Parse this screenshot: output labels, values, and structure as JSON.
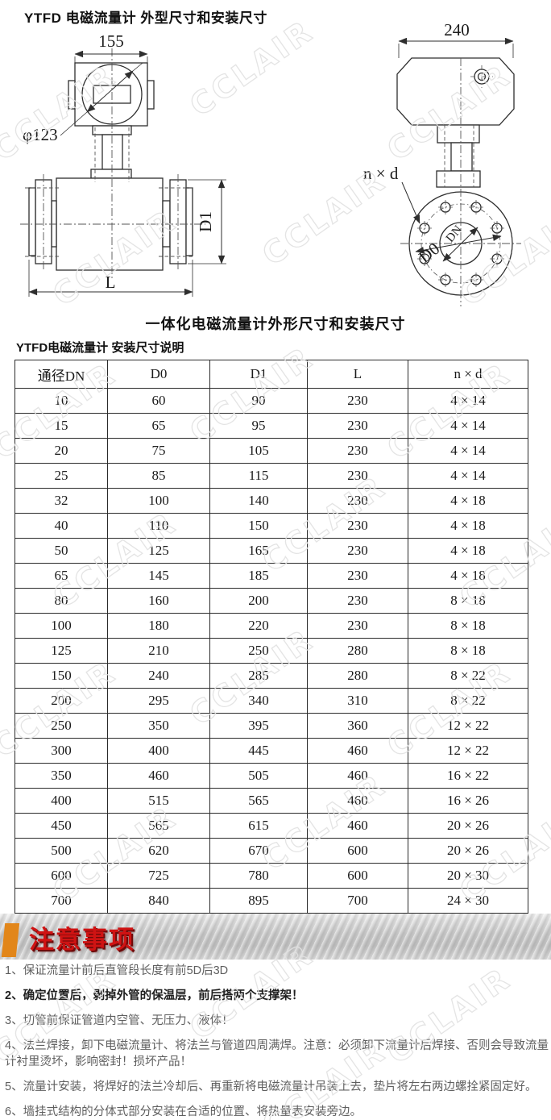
{
  "page": {
    "title": "YTFD 电磁流量计 外型尺寸和安装尺寸",
    "drawings_caption": "一体化电磁流量计外形尺寸和安装尺寸",
    "table_title": "YTFD电磁流量计 安装尺寸说明",
    "watermark_text": "CCLAIR"
  },
  "drawings": {
    "side_view": {
      "top_width": "155",
      "head_diameter": "φ123",
      "flange_diameter": "D1",
      "body_length": "L"
    },
    "front_view": {
      "top_width": "240",
      "bolt_spec": "n × d",
      "bolt_circle": "D0",
      "bore": "DN"
    }
  },
  "table": {
    "headers": [
      "通径DN",
      "D0",
      "D1",
      "L",
      "n × d"
    ],
    "rows": [
      [
        "10",
        "60",
        "90",
        "230",
        "4 × 14"
      ],
      [
        "15",
        "65",
        "95",
        "230",
        "4 × 14"
      ],
      [
        "20",
        "75",
        "105",
        "230",
        "4 × 14"
      ],
      [
        "25",
        "85",
        "115",
        "230",
        "4 × 14"
      ],
      [
        "32",
        "100",
        "140",
        "230",
        "4 × 18"
      ],
      [
        "40",
        "110",
        "150",
        "230",
        "4 × 18"
      ],
      [
        "50",
        "125",
        "165",
        "230",
        "4 × 18"
      ],
      [
        "65",
        "145",
        "185",
        "230",
        "4 × 18"
      ],
      [
        "80",
        "160",
        "200",
        "230",
        "8 × 18"
      ],
      [
        "100",
        "180",
        "220",
        "230",
        "8 × 18"
      ],
      [
        "125",
        "210",
        "250",
        "280",
        "8 × 18"
      ],
      [
        "150",
        "240",
        "285",
        "280",
        "8 × 22"
      ],
      [
        "200",
        "295",
        "340",
        "310",
        "8 × 22"
      ],
      [
        "250",
        "350",
        "395",
        "360",
        "12 × 22"
      ],
      [
        "300",
        "400",
        "445",
        "460",
        "12 × 22"
      ],
      [
        "350",
        "460",
        "505",
        "460",
        "16 × 22"
      ],
      [
        "400",
        "515",
        "565",
        "460",
        "16 × 26"
      ],
      [
        "450",
        "565",
        "615",
        "460",
        "20 × 26"
      ],
      [
        "500",
        "620",
        "670",
        "600",
        "20 × 26"
      ],
      [
        "600",
        "725",
        "780",
        "600",
        "20 × 30"
      ],
      [
        "700",
        "840",
        "895",
        "700",
        "24 × 30"
      ]
    ]
  },
  "notes": {
    "header": "注意事项",
    "items": [
      {
        "text": "1、保证流量计前后直管段长度有前5D后3D",
        "emphasis": false
      },
      {
        "text": "2、确定位置后，剥掉外管的保温层，前后搭两个支撑架！",
        "emphasis": true
      },
      {
        "text": "3、切管前保证管道内空管、无压力、液体！",
        "emphasis": false
      },
      {
        "text": "4、法兰焊接，卸下电磁流量计、将法兰与管道四周满焊。注意：必须卸下流量计后焊接、否则会导致流量计衬里烫坏，影响密封！损坏产品！",
        "emphasis": false
      },
      {
        "text": "5、流量计安装，将焊好的法兰冷却后、再重新将电磁流量计吊装上去，垫片将左右两边螺拴紧固定好。",
        "emphasis": false
      },
      {
        "text": "6、墙挂式结构的分体式部分安装在合适的位置、将热量表安装旁边。",
        "emphasis": false
      }
    ]
  },
  "colors": {
    "note_header_red": "#cf1313",
    "note_header_shadow": "#6e0a0a",
    "accent_orange": "#e2861a",
    "banner_gray": "#c9c9c9",
    "table_border": "#2b2b2b",
    "notes_text": "#5f5f5f",
    "drawing_line": "#2e2e2e",
    "watermark_gray": "#e2e2e2"
  }
}
